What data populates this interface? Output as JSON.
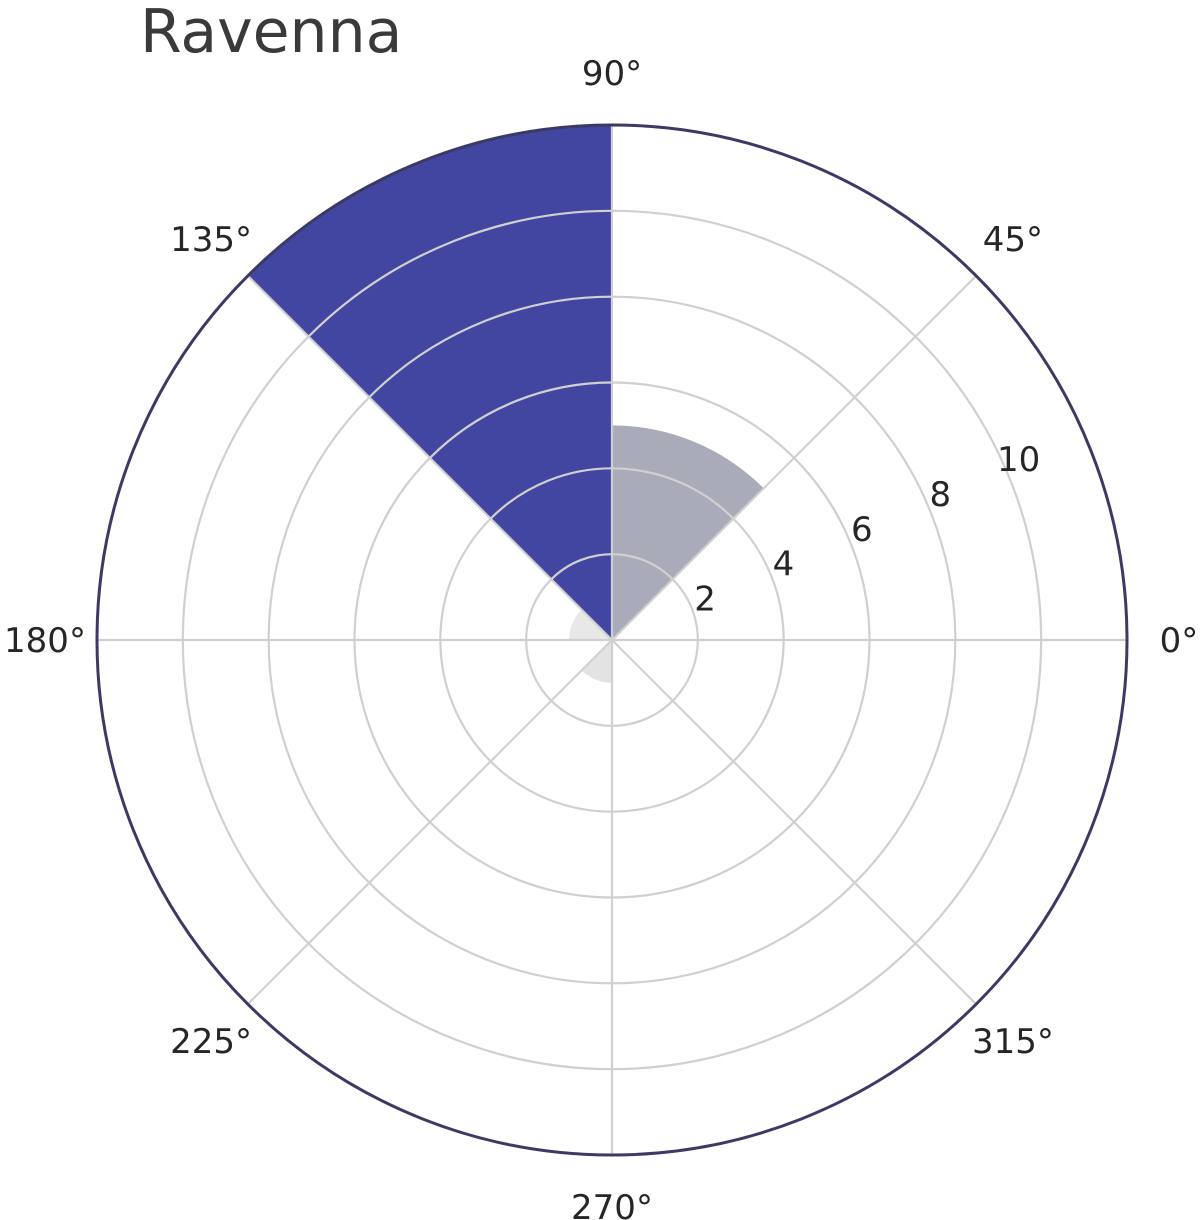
{
  "chart_data": {
    "type": "polar-bar",
    "title": "Ravenna",
    "theta_tick_labels": [
      "0°",
      "45°",
      "90°",
      "135°",
      "180°",
      "225°",
      "270°",
      "315°"
    ],
    "theta_ticks_deg": [
      0,
      45,
      90,
      135,
      180,
      225,
      270,
      315
    ],
    "r_tick_labels": [
      "2",
      "4",
      "6",
      "8",
      "10"
    ],
    "r_ticks": [
      2,
      4,
      6,
      8,
      10
    ],
    "rlim": [
      0,
      12
    ],
    "grid": true,
    "sectors": [
      {
        "theta_start": 45,
        "theta_end": 90,
        "value": 5,
        "color": "#a9abb8"
      },
      {
        "theta_start": 90,
        "theta_end": 135,
        "value": 12,
        "color": "#4346a0"
      },
      {
        "theta_start": 135,
        "theta_end": 180,
        "value": 1,
        "color": "#e8e8e8"
      },
      {
        "theta_start": 225,
        "theta_end": 270,
        "value": 1,
        "color": "#e3e3e3"
      }
    ],
    "colors": {
      "spine": "#3c3a64",
      "grid": "#d0d0d0"
    }
  }
}
